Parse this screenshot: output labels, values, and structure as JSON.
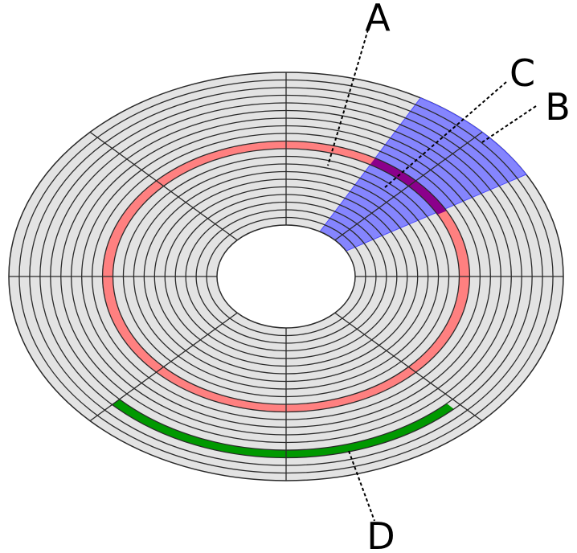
{
  "labels": {
    "a": "A",
    "b": "B",
    "c": "C",
    "d": "D"
  },
  "colors": {
    "platter": "#e3e3e3",
    "lines": "#2a2a2a",
    "track_highlight": "#ff8080",
    "sector_highlight": "#7f7fff",
    "track_sector": "#8b008b",
    "cluster": "#009900",
    "background": "#ffffff"
  },
  "disk": {
    "track_count": 20,
    "sector_count": 8
  }
}
